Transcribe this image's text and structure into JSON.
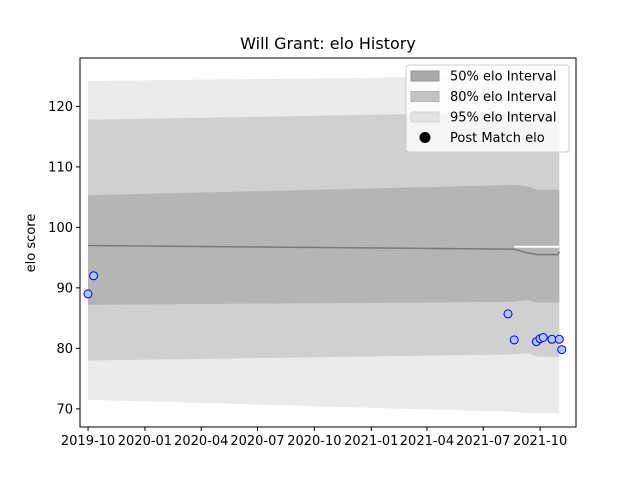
{
  "chart_data": {
    "type": "line",
    "title": "Will Grant: elo History",
    "xlabel": "",
    "ylabel": "elo score",
    "x_axis": "date",
    "xlim": [
      "2019-09-18",
      "2021-11-28"
    ],
    "ylim": [
      67,
      128
    ],
    "x_ticks": [
      "2019-10-01",
      "2020-01-01",
      "2020-04-01",
      "2020-07-01",
      "2020-10-01",
      "2021-01-01",
      "2021-04-01",
      "2021-07-01",
      "2021-10-01"
    ],
    "x_tick_labels": [
      "2019-10",
      "2020-01",
      "2020-04",
      "2020-07",
      "2020-10",
      "2021-01",
      "2021-04",
      "2021-07",
      "2021-10"
    ],
    "y_ticks": [
      70,
      80,
      90,
      100,
      110,
      120
    ],
    "y_tick_labels": [
      "70",
      "80",
      "90",
      "100",
      "110",
      "120"
    ],
    "grid": false,
    "legend_position": "top-right",
    "legend": [
      "50% elo Interval",
      "80% elo Interval",
      "95% elo Interval",
      "Post Match elo"
    ],
    "interval_dates": [
      "2019-10-01",
      "2021-08-20",
      "2021-09-10",
      "2021-09-27",
      "2021-10-30",
      "2021-11-01"
    ],
    "median": [
      97.0,
      96.4,
      95.8,
      95.5,
      95.5,
      96.0
    ],
    "band_50": {
      "name": "50% elo Interval",
      "color": "#aaaaaa",
      "lower": [
        87.2,
        87.7,
        88.0,
        87.6,
        87.6,
        87.6
      ],
      "upper": [
        105.3,
        107.0,
        106.8,
        106.2,
        106.2,
        106.2
      ]
    },
    "band_80": {
      "name": "80% elo Interval",
      "color": "#c4c4c4",
      "lower": [
        78.0,
        79.0,
        79.2,
        78.6,
        78.6,
        78.6
      ],
      "upper": [
        117.8,
        119.0,
        118.8,
        118.0,
        118.0,
        118.0
      ]
    },
    "band_95": {
      "name": "95% elo Interval",
      "color": "#e2e2e2",
      "lower": [
        71.5,
        69.5,
        69.3,
        69.3,
        69.3,
        69.3
      ],
      "upper": [
        124.2,
        125.0,
        125.0,
        125.0,
        125.0,
        125.0
      ]
    },
    "white_line": [
      null,
      96.8,
      96.8,
      96.8,
      96.8,
      96.8
    ],
    "post_match": {
      "name": "Post Match elo",
      "dates": [
        "2019-10-01",
        "2019-10-10",
        "2021-08-10",
        "2021-08-20",
        "2021-09-25",
        "2021-10-01",
        "2021-10-06",
        "2021-10-20",
        "2021-11-01",
        "2021-11-05"
      ],
      "values": [
        89.0,
        92.0,
        85.7,
        81.4,
        81.1,
        81.6,
        81.8,
        81.5,
        81.5,
        79.8
      ],
      "face_color": "#aec8f5",
      "edge_color": "#0000ff"
    }
  }
}
